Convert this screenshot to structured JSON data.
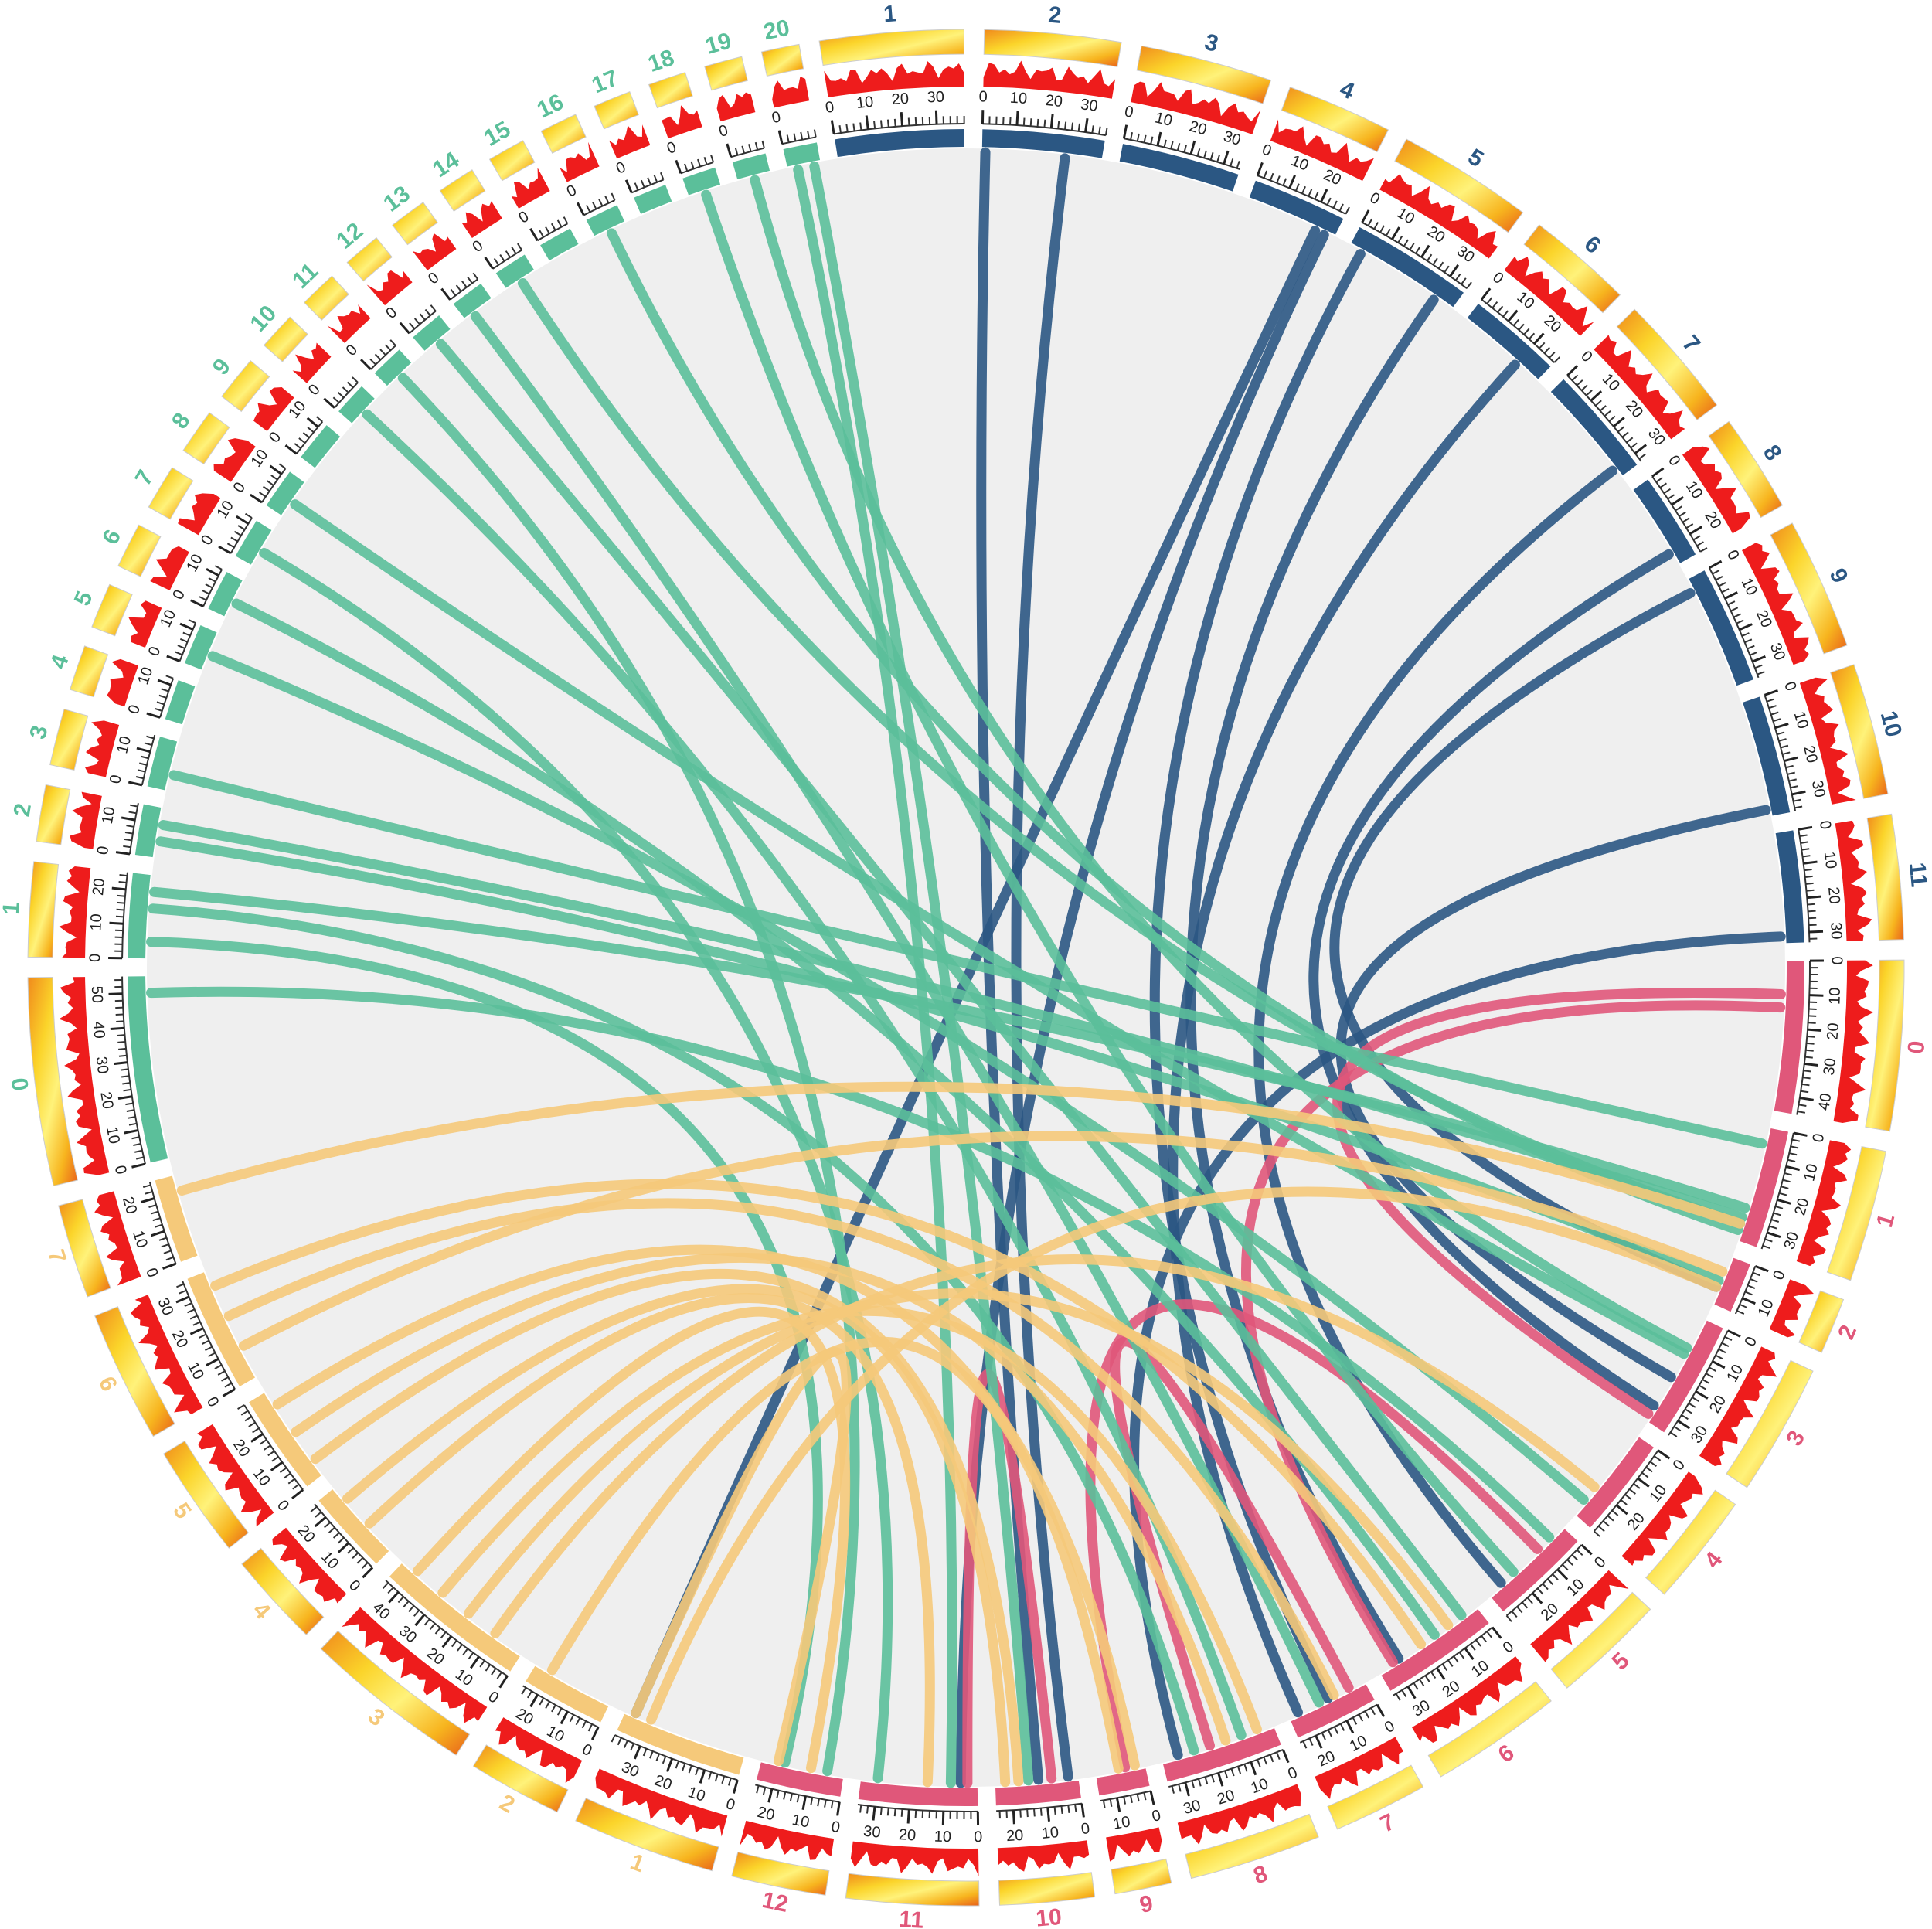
{
  "chart_data": {
    "type": "circos",
    "groups": [
      {
        "color": "#2b5783",
        "chromosomes": [
          {
            "label": "1",
            "length": 38,
            "ticks": [
              0,
              10,
              20,
              30
            ]
          },
          {
            "label": "2",
            "length": 36,
            "ticks": [
              0,
              10,
              20,
              30
            ]
          },
          {
            "label": "3",
            "length": 35,
            "ticks": [
              0,
              10,
              20,
              30
            ]
          },
          {
            "label": "4",
            "length": 28,
            "ticks": [
              0,
              10,
              20
            ]
          },
          {
            "label": "5",
            "length": 36,
            "ticks": [
              0,
              10,
              20,
              30
            ]
          },
          {
            "label": "6",
            "length": 28,
            "ticks": [
              0,
              10,
              20
            ]
          },
          {
            "label": "7",
            "length": 33,
            "ticks": [
              0,
              10,
              20,
              30
            ]
          },
          {
            "label": "8",
            "length": 26,
            "ticks": [
              0,
              10,
              20
            ]
          },
          {
            "label": "9",
            "length": 35,
            "ticks": [
              0,
              10,
              20,
              30
            ]
          },
          {
            "label": "10",
            "length": 35,
            "ticks": [
              0,
              10,
              20,
              30
            ]
          },
          {
            "label": "11",
            "length": 33,
            "ticks": [
              0,
              10,
              20,
              30
            ]
          }
        ]
      },
      {
        "color": "#e0577a",
        "chromosomes": [
          {
            "label": "0",
            "length": 45,
            "ticks": [
              0,
              10,
              20,
              30,
              40
            ]
          },
          {
            "label": "1",
            "length": 35,
            "ticks": [
              0,
              10,
              20,
              30
            ]
          },
          {
            "label": "2",
            "length": 15,
            "ticks": [
              0,
              10
            ]
          },
          {
            "label": "3",
            "length": 35,
            "ticks": [
              0,
              10,
              20,
              30
            ]
          },
          {
            "label": "4",
            "length": 30,
            "ticks": [
              0,
              10,
              20
            ]
          },
          {
            "label": "5",
            "length": 30,
            "ticks": [
              0,
              10,
              20
            ]
          },
          {
            "label": "6",
            "length": 35,
            "ticks": [
              0,
              10,
              20,
              30
            ]
          },
          {
            "label": "7",
            "length": 25,
            "ticks": [
              0,
              10,
              20
            ]
          },
          {
            "label": "8",
            "length": 35,
            "ticks": [
              0,
              10,
              20,
              30
            ]
          },
          {
            "label": "9",
            "length": 15,
            "ticks": [
              0,
              10
            ]
          },
          {
            "label": "10",
            "length": 25,
            "ticks": [
              0,
              10,
              20
            ]
          },
          {
            "label": "11",
            "length": 35,
            "ticks": [
              0,
              10,
              20,
              30
            ]
          },
          {
            "label": "12",
            "length": 25,
            "ticks": [
              0,
              10,
              20
            ]
          }
        ]
      },
      {
        "color": "#f5c97a",
        "chromosomes": [
          {
            "label": "1",
            "length": 38,
            "ticks": [
              0,
              10,
              20,
              30
            ]
          },
          {
            "label": "2",
            "length": 25,
            "ticks": [
              0,
              10,
              20
            ]
          },
          {
            "label": "3",
            "length": 45,
            "ticks": [
              0,
              10,
              20,
              30,
              40
            ]
          },
          {
            "label": "4",
            "length": 25,
            "ticks": [
              0,
              10,
              20
            ]
          },
          {
            "label": "5",
            "length": 30,
            "ticks": [
              0,
              10,
              20
            ]
          },
          {
            "label": "6",
            "length": 35,
            "ticks": [
              0,
              10,
              20,
              30
            ]
          },
          {
            "label": "7",
            "length": 25,
            "ticks": [
              0,
              10,
              20
            ]
          }
        ]
      },
      {
        "color": "#5bbf9a",
        "chromosomes": [
          {
            "label": "0",
            "length": 55,
            "ticks": [
              0,
              10,
              20,
              30,
              40,
              50
            ]
          },
          {
            "label": "1",
            "length": 25,
            "ticks": [
              0,
              10,
              20
            ]
          },
          {
            "label": "2",
            "length": 15,
            "ticks": [
              0,
              10
            ]
          },
          {
            "label": "3",
            "length": 15,
            "ticks": [
              0,
              10
            ]
          },
          {
            "label": "4",
            "length": 12,
            "ticks": [
              0,
              10
            ]
          },
          {
            "label": "5",
            "length": 12,
            "ticks": [
              0,
              10
            ]
          },
          {
            "label": "6",
            "length": 12,
            "ticks": [
              0,
              10
            ]
          },
          {
            "label": "7",
            "length": 12,
            "ticks": [
              0,
              10
            ]
          },
          {
            "label": "8",
            "length": 12,
            "ticks": [
              0,
              10
            ]
          },
          {
            "label": "9",
            "length": 12,
            "ticks": [
              0,
              10
            ]
          },
          {
            "label": "10",
            "length": 10,
            "ticks": [
              0
            ]
          },
          {
            "label": "11",
            "length": 10,
            "ticks": [
              0
            ]
          },
          {
            "label": "12",
            "length": 10,
            "ticks": [
              0
            ]
          },
          {
            "label": "13",
            "length": 10,
            "ticks": [
              0
            ]
          },
          {
            "label": "14",
            "length": 10,
            "ticks": [
              0
            ]
          },
          {
            "label": "15",
            "length": 10,
            "ticks": [
              0
            ]
          },
          {
            "label": "16",
            "length": 10,
            "ticks": [
              0
            ]
          },
          {
            "label": "17",
            "length": 10,
            "ticks": [
              0
            ]
          },
          {
            "label": "18",
            "length": 10,
            "ticks": [
              0
            ]
          },
          {
            "label": "19",
            "length": 10,
            "ticks": [
              0
            ]
          },
          {
            "label": "20",
            "length": 10,
            "ticks": [
              0
            ]
          }
        ]
      }
    ],
    "links": [
      {
        "from": [
          0,
          1,
          1
        ],
        "to": [
          1,
          10,
          12
        ]
      },
      {
        "from": [
          0,
          1,
          25
        ],
        "to": [
          1,
          10,
          3
        ]
      },
      {
        "from": [
          0,
          3,
          22
        ],
        "to": [
          2,
          0,
          35
        ]
      },
      {
        "from": [
          0,
          3,
          25
        ],
        "to": [
          1,
          11,
          5
        ]
      },
      {
        "from": [
          0,
          4,
          4
        ],
        "to": [
          1,
          7,
          12
        ]
      },
      {
        "from": [
          0,
          4,
          30
        ],
        "to": [
          1,
          6,
          28
        ]
      },
      {
        "from": [
          0,
          5,
          20
        ],
        "to": [
          1,
          7,
          22
        ]
      },
      {
        "from": [
          0,
          6,
          30
        ],
        "to": [
          1,
          5,
          25
        ]
      },
      {
        "from": [
          0,
          7,
          22
        ],
        "to": [
          1,
          3,
          30
        ]
      },
      {
        "from": [
          0,
          8,
          4
        ],
        "to": [
          1,
          2,
          10
        ]
      },
      {
        "from": [
          0,
          10,
          31
        ],
        "to": [
          1,
          8,
          30
        ]
      },
      {
        "from": [
          0,
          9,
          33
        ],
        "to": [
          1,
          3,
          20
        ]
      },
      {
        "from": [
          1,
          0,
          10
        ],
        "to": [
          1,
          3,
          33
        ]
      },
      {
        "from": [
          1,
          0,
          14
        ],
        "to": [
          1,
          6,
          30
        ]
      },
      {
        "from": [
          1,
          10,
          8
        ],
        "to": [
          1,
          11,
          3
        ]
      },
      {
        "from": [
          1,
          9,
          6
        ],
        "to": [
          1,
          5,
          10
        ]
      },
      {
        "from": [
          1,
          8,
          20
        ],
        "to": [
          1,
          7,
          5
        ]
      },
      {
        "from": [
          3,
          20,
          8
        ],
        "to": [
          1,
          10,
          15
        ]
      },
      {
        "from": [
          3,
          20,
          3
        ],
        "to": [
          1,
          11,
          8
        ]
      },
      {
        "from": [
          3,
          19,
          5
        ],
        "to": [
          1,
          3,
          10
        ]
      },
      {
        "from": [
          3,
          18,
          5
        ],
        "to": [
          1,
          5,
          20
        ]
      },
      {
        "from": [
          3,
          16,
          5
        ],
        "to": [
          1,
          1,
          32
        ]
      },
      {
        "from": [
          3,
          14,
          5
        ],
        "to": [
          1,
          1,
          30
        ]
      },
      {
        "from": [
          3,
          13,
          3
        ],
        "to": [
          1,
          7,
          15
        ]
      },
      {
        "from": [
          3,
          12,
          5
        ],
        "to": [
          1,
          6,
          5
        ]
      },
      {
        "from": [
          3,
          11,
          5
        ],
        "to": [
          1,
          12,
          5
        ]
      },
      {
        "from": [
          3,
          10,
          5
        ],
        "to": [
          1,
          8,
          10
        ]
      },
      {
        "from": [
          3,
          8,
          5
        ],
        "to": [
          1,
          3,
          12
        ]
      },
      {
        "from": [
          3,
          7,
          5
        ],
        "to": [
          1,
          11,
          30
        ]
      },
      {
        "from": [
          3,
          6,
          5
        ],
        "to": [
          1,
          6,
          15
        ]
      },
      {
        "from": [
          3,
          5,
          5
        ],
        "to": [
          1,
          4,
          25
        ]
      },
      {
        "from": [
          3,
          3,
          5
        ],
        "to": [
          1,
          1,
          5
        ]
      },
      {
        "from": [
          3,
          2,
          5
        ],
        "to": [
          1,
          2,
          8
        ]
      },
      {
        "from": [
          3,
          2,
          10
        ],
        "to": [
          1,
          1,
          28
        ]
      },
      {
        "from": [
          3,
          1,
          5
        ],
        "to": [
          1,
          12,
          18
        ]
      },
      {
        "from": [
          3,
          1,
          15
        ],
        "to": [
          1,
          8,
          25
        ]
      },
      {
        "from": [
          3,
          1,
          20
        ],
        "to": [
          1,
          1,
          25
        ]
      },
      {
        "from": [
          3,
          0,
          50
        ],
        "to": [
          1,
          5,
          5
        ]
      },
      {
        "from": [
          2,
          6,
          20
        ],
        "to": [
          1,
          1,
          30
        ]
      },
      {
        "from": [
          2,
          5,
          30
        ],
        "to": [
          1,
          6,
          20
        ]
      },
      {
        "from": [
          2,
          5,
          20
        ],
        "to": [
          1,
          7,
          10
        ]
      },
      {
        "from": [
          2,
          5,
          10
        ],
        "to": [
          1,
          2,
          5
        ]
      },
      {
        "from": [
          2,
          4,
          25
        ],
        "to": [
          1,
          9,
          3
        ]
      },
      {
        "from": [
          2,
          4,
          15
        ],
        "to": [
          1,
          8,
          15
        ]
      },
      {
        "from": [
          2,
          4,
          5
        ],
        "to": [
          1,
          10,
          18
        ]
      },
      {
        "from": [
          2,
          3,
          20
        ],
        "to": [
          1,
          10,
          22
        ]
      },
      {
        "from": [
          2,
          3,
          10
        ],
        "to": [
          1,
          11,
          15
        ]
      },
      {
        "from": [
          2,
          2,
          40
        ],
        "to": [
          1,
          12,
          10
        ]
      },
      {
        "from": [
          2,
          2,
          30
        ],
        "to": [
          1,
          8,
          5
        ]
      },
      {
        "from": [
          2,
          2,
          20
        ],
        "to": [
          1,
          6,
          10
        ]
      },
      {
        "from": [
          2,
          2,
          10
        ],
        "to": [
          1,
          4,
          20
        ]
      },
      {
        "from": [
          2,
          1,
          20
        ],
        "to": [
          1,
          9,
          8
        ]
      },
      {
        "from": [
          2,
          0,
          35
        ],
        "to": [
          1,
          12,
          20
        ]
      },
      {
        "from": [
          2,
          0,
          30
        ],
        "to": [
          1,
          2,
          10
        ]
      }
    ]
  }
}
